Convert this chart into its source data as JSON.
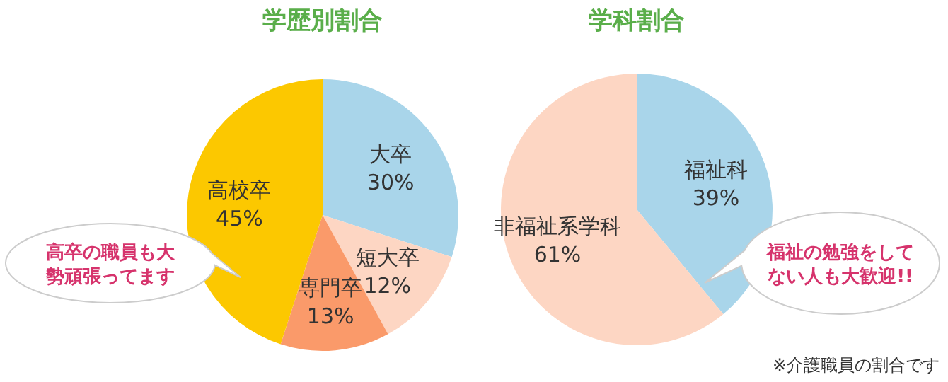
{
  "chart_data": [
    {
      "type": "pie",
      "title": "学歴別割合",
      "categories": [
        "大卒",
        "短大卒",
        "専門卒",
        "高校卒"
      ],
      "values": [
        30,
        12,
        13,
        45
      ],
      "colors": [
        "#a9d5ea",
        "#fdd6c3",
        "#fa9a6a",
        "#fcc800"
      ],
      "value_labels": [
        "30%",
        "12%",
        "13%",
        "45%"
      ],
      "annotations": [
        "高卒の職員も大勢頑張ってます"
      ]
    },
    {
      "type": "pie",
      "title": "学科割合",
      "categories": [
        "福祉科",
        "非福祉系学科"
      ],
      "values": [
        39,
        61
      ],
      "colors": [
        "#a9d5ea",
        "#fdd6c3"
      ],
      "value_labels": [
        "39%",
        "61%"
      ],
      "annotations": [
        "福祉の勉強をしてない人も大歓迎!!",
        "※介護職員の割合です"
      ]
    }
  ]
}
